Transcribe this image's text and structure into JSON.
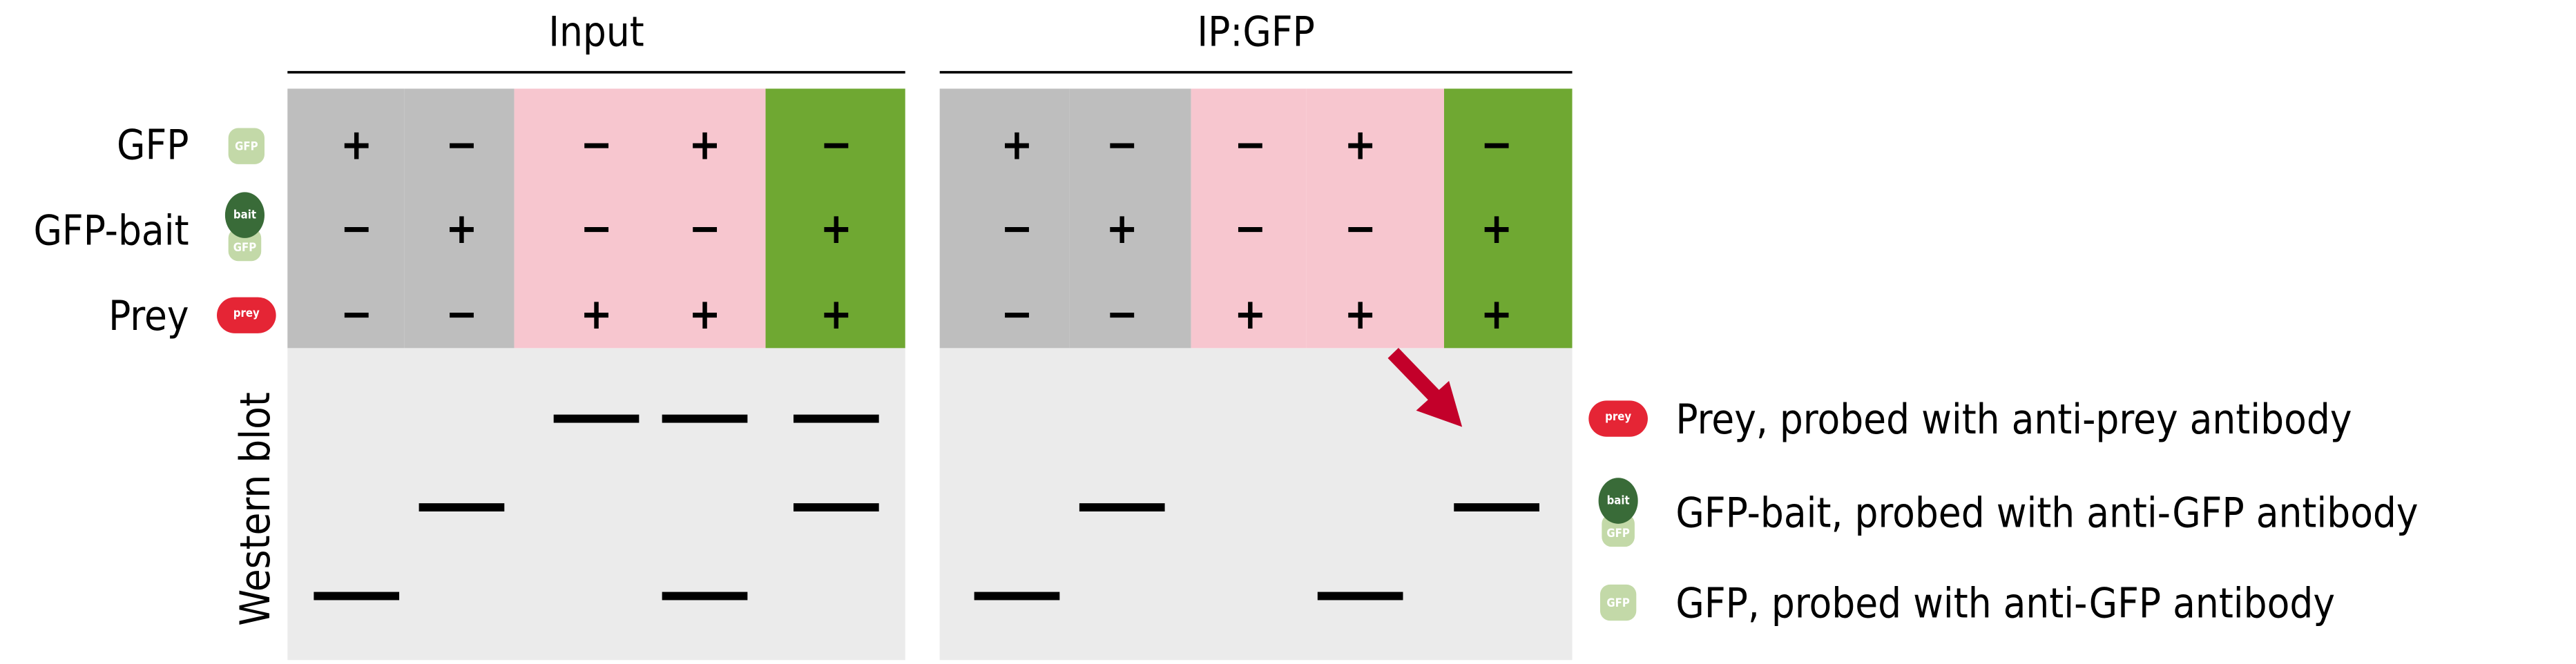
{
  "panels": [
    {
      "title": "Input",
      "columns": [
        {
          "group": "control",
          "GFP": "+",
          "GFP-bait": "−",
          "Prey": "−",
          "bands": [
            "GFP"
          ]
        },
        {
          "group": "control",
          "GFP": "−",
          "GFP-bait": "+",
          "Prey": "−",
          "bands": [
            "GFP-bait"
          ]
        },
        {
          "group": "prey",
          "GFP": "−",
          "GFP-bait": "−",
          "Prey": "+",
          "bands": [
            "Prey"
          ]
        },
        {
          "group": "prey",
          "GFP": "+",
          "GFP-bait": "−",
          "Prey": "+",
          "bands": [
            "Prey",
            "GFP"
          ]
        },
        {
          "group": "test",
          "GFP": "−",
          "GFP-bait": "+",
          "Prey": "+",
          "bands": [
            "Prey",
            "GFP-bait"
          ]
        }
      ]
    },
    {
      "title": "IP:GFP",
      "columns": [
        {
          "group": "control",
          "GFP": "+",
          "GFP-bait": "−",
          "Prey": "−",
          "bands": [
            "GFP"
          ]
        },
        {
          "group": "control",
          "GFP": "−",
          "GFP-bait": "+",
          "Prey": "−",
          "bands": [
            "GFP-bait"
          ]
        },
        {
          "group": "prey",
          "GFP": "−",
          "GFP-bait": "−",
          "Prey": "+",
          "bands": []
        },
        {
          "group": "prey",
          "GFP": "+",
          "GFP-bait": "−",
          "Prey": "+",
          "bands": [
            "GFP"
          ]
        },
        {
          "group": "test",
          "GFP": "−",
          "GFP-bait": "+",
          "Prey": "+",
          "bands": [
            "GFP-bait"
          ]
        }
      ]
    }
  ],
  "rows": [
    "GFP",
    "GFP-bait",
    "Prey"
  ],
  "icons": {
    "gfp": "GFP",
    "bait": "bait",
    "prey": "prey"
  },
  "blot_label": "Western blot",
  "legend": [
    {
      "icon": "prey",
      "text": "Prey, probed with anti-prey antibody"
    },
    {
      "icon": "bait",
      "text": "GFP-bait, probed with anti-GFP antibody"
    },
    {
      "icon": "gfp",
      "text": "GFP, probed with anti-GFP antibody"
    }
  ],
  "colors": {
    "control": "#bebebe",
    "prey": "#f7c6cf",
    "test": "#6fa832",
    "blot": "#ebebeb",
    "prey_icon": "#e52535",
    "bait_icon": "#396b38",
    "gfp_icon": "#c3d9a8",
    "arrow": "#c3002a"
  }
}
